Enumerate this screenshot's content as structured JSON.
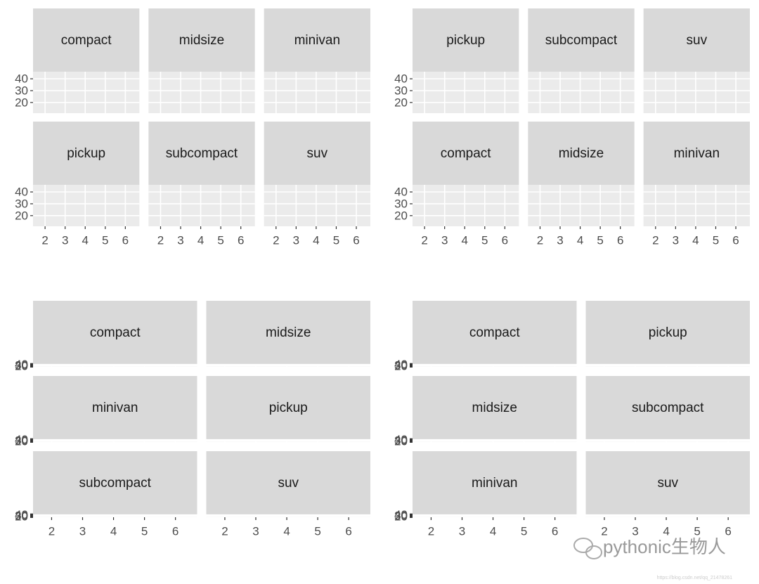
{
  "chart_data": [
    {
      "type": "facet",
      "facets": [
        "compact",
        "midsize",
        "minivan",
        "pickup",
        "subcompact",
        "suv"
      ],
      "ncol": 3,
      "xlim": [
        1.4,
        6.7
      ],
      "xticks": [
        2,
        3,
        4,
        5,
        6
      ],
      "ylim": [
        11,
        46
      ],
      "yticks": [
        20,
        30,
        40
      ],
      "grid": true
    },
    {
      "type": "facet",
      "facets": [
        "pickup",
        "subcompact",
        "suv",
        "compact",
        "midsize",
        "minivan"
      ],
      "ncol": 3,
      "xlim": [
        1.4,
        6.7
      ],
      "xticks": [
        2,
        3,
        4,
        5,
        6
      ],
      "ylim": [
        11,
        46
      ],
      "yticks": [
        20,
        30,
        40
      ],
      "grid": true
    },
    {
      "type": "facet",
      "facets": [
        "compact",
        "midsize",
        "minivan",
        "pickup",
        "subcompact",
        "suv"
      ],
      "ncol": 2,
      "xlim": [
        1.4,
        6.7
      ],
      "xticks": [
        2,
        3,
        4,
        5,
        6
      ],
      "ylim": [
        11,
        46
      ],
      "yticks": [
        20,
        30,
        40
      ],
      "grid": true
    },
    {
      "type": "facet",
      "facets": [
        "compact",
        "pickup",
        "midsize",
        "subcompact",
        "minivan",
        "suv"
      ],
      "ncol": 2,
      "xlim": [
        1.4,
        6.7
      ],
      "xticks": [
        2,
        3,
        4,
        5,
        6
      ],
      "ylim": [
        11,
        46
      ],
      "yticks": [
        20,
        30,
        40
      ],
      "grid": true
    }
  ],
  "watermark": "pythonic生物人",
  "source_url": "https://blog.csdn.net/qq_21478261"
}
